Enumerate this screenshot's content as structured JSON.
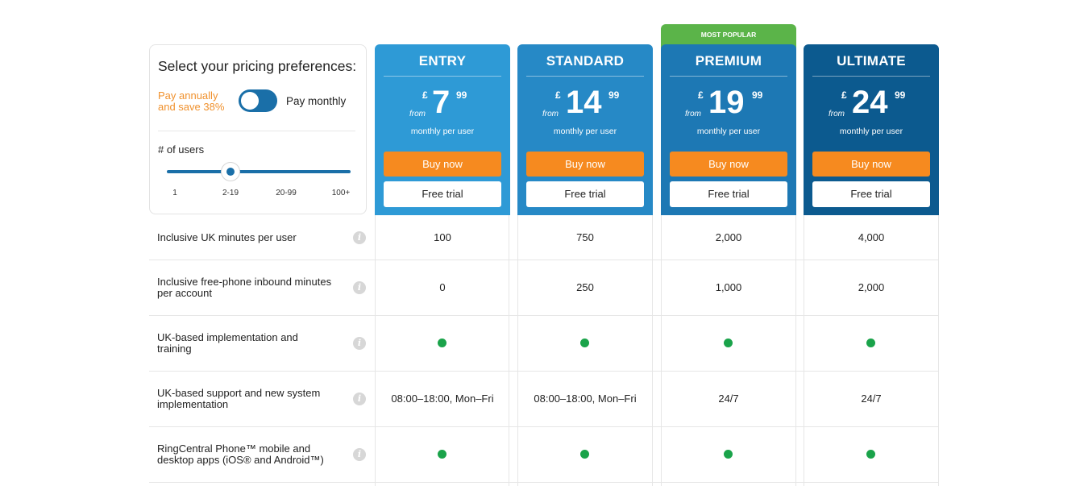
{
  "preferences": {
    "title": "Select your pricing preferences:",
    "annual_line1": "Pay annually",
    "annual_line2": "and save 38%",
    "monthly_label": "Pay monthly",
    "billing_toggle": "monthly",
    "users_label": "# of users",
    "user_ticks": [
      "1",
      "2-19",
      "20-99",
      "100+"
    ],
    "selected_users": "2-19"
  },
  "popular_badge": "MOST POPULAR",
  "plans": [
    {
      "name": "ENTRY",
      "currency": "£",
      "from": "from",
      "amount": "7",
      "pence": "99",
      "per": "monthly per user",
      "buy": "Buy now",
      "trial": "Free trial",
      "color": "#2e9ad6"
    },
    {
      "name": "STANDARD",
      "currency": "£",
      "from": "from",
      "amount": "14",
      "pence": "99",
      "per": "monthly per user",
      "buy": "Buy now",
      "trial": "Free trial",
      "color": "#2689c6"
    },
    {
      "name": "PREMIUM",
      "currency": "£",
      "from": "from",
      "amount": "19",
      "pence": "99",
      "per": "monthly per user",
      "buy": "Buy now",
      "trial": "Free trial",
      "color": "#1d78b4"
    },
    {
      "name": "ULTIMATE",
      "currency": "£",
      "from": "from",
      "amount": "24",
      "pence": "99",
      "per": "monthly per user",
      "buy": "Buy now",
      "trial": "Free trial",
      "color": "#0c5a8f"
    }
  ],
  "features": [
    {
      "line1": "Inclusive UK minutes per user",
      "line2": "",
      "values": [
        "100",
        "750",
        "2,000",
        "4,000"
      ]
    },
    {
      "line1": "Inclusive free-phone inbound minutes",
      "line2": "per account",
      "values": [
        "0",
        "250",
        "1,000",
        "2,000"
      ]
    },
    {
      "line1": "UK-based implementation and",
      "line2": "training",
      "values": [
        "dot",
        "dot",
        "dot",
        "dot"
      ]
    },
    {
      "line1": "UK-based support and new system",
      "line2": "implementation",
      "values": [
        "08:00–18:00, Mon–Fri",
        "08:00–18:00, Mon–Fri",
        "24/7",
        "24/7"
      ]
    },
    {
      "line1": "RingCentral Phone™ mobile and",
      "line2": "desktop apps (iOS® and Android™)",
      "values": [
        "dot",
        "dot",
        "dot",
        "dot"
      ]
    }
  ],
  "colors": {
    "orange_button": "#f68a1f",
    "included_dot": "#1aa34a",
    "popular_badge": "#5bb449",
    "annual_text": "#f0912d"
  }
}
